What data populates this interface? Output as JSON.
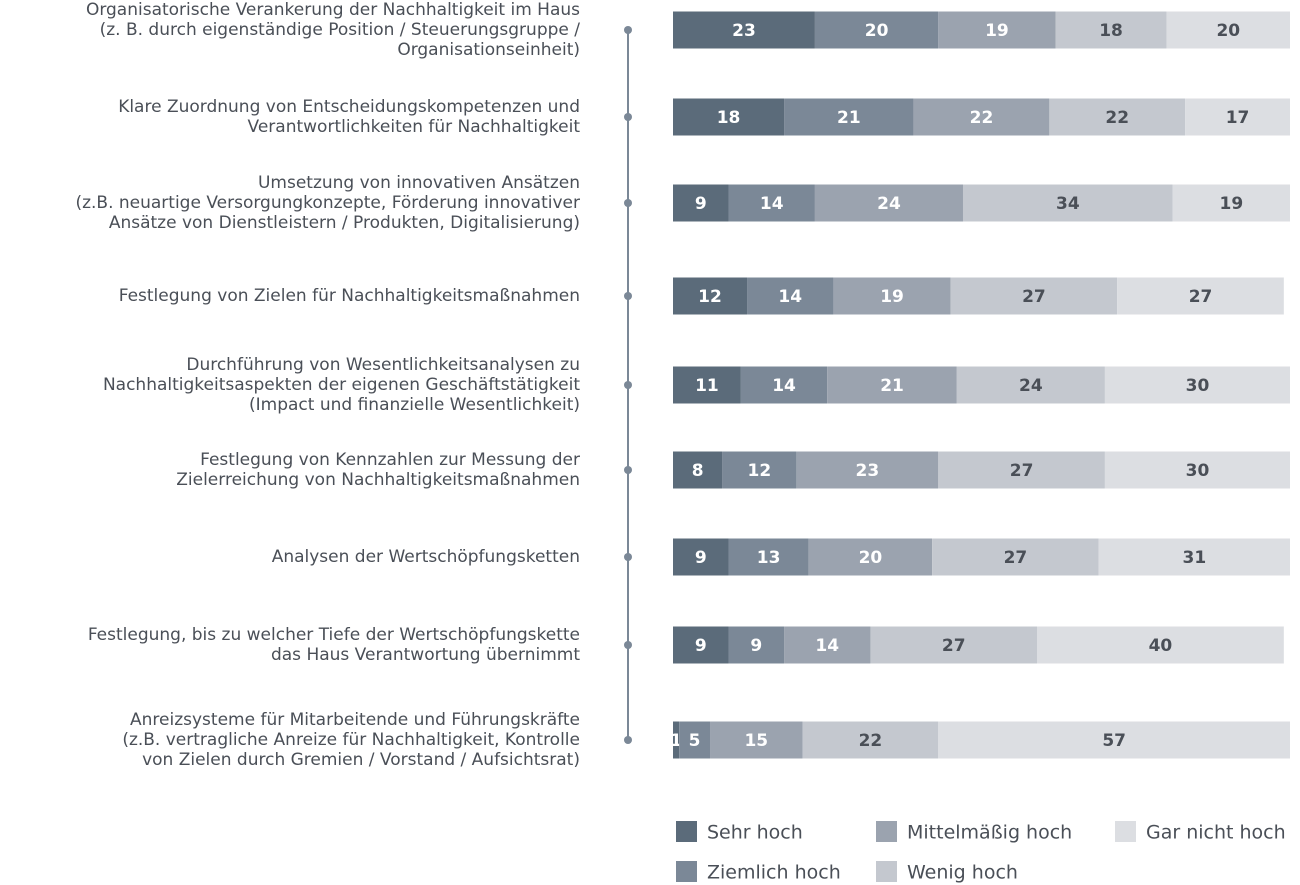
{
  "chart_data": {
    "type": "stacked-bar-horizontal",
    "categories": [
      [
        "Organisatorische Verankerung der Nachhaltigkeit im Haus",
        "(z. B. durch eigenständige Position / Steuerungsgruppe /",
        "Organisationseinheit)"
      ],
      [
        "Klare Zuordnung von Entscheidungskompetenzen und",
        "Verantwortlichkeiten für Nachhaltigkeit"
      ],
      [
        "Umsetzung von innovativen Ansätzen",
        "(z.B. neuartige Versorgungkonzepte, Förderung innovativer",
        "Ansätze von Dienstleistern / Produkten, Digitalisierung)"
      ],
      [
        "Festlegung von Zielen für Nachhaltigkeitsmaßnahmen"
      ],
      [
        "Durchführung von Wesentlichkeitsanalysen zu",
        "Nachhaltigkeitsaspekten der eigenen Geschäftstätigkeit",
        "(Impact und finanzielle Wesentlichkeit)"
      ],
      [
        "Festlegung von Kennzahlen zur Messung der",
        "Zielerreichung von Nachhaltigkeitsmaßnahmen"
      ],
      [
        "Analysen der Wertschöpfungsketten"
      ],
      [
        "Festlegung, bis zu welcher Tiefe der Wertschöpfungskette",
        "das Haus Verantwortung übernimmt"
      ],
      [
        "Anreizsysteme für Mitarbeitende und Führungskräfte",
        "(z.B. vertragliche Anreize für Nachhaltigkeit, Kontrolle",
        "von Zielen durch Gremien / Vorstand / Aufsichtsrat)"
      ]
    ],
    "series": [
      {
        "name": "Sehr hoch",
        "color": "#5b6b7a",
        "label_color": "#ffffff",
        "values": [
          23,
          18,
          9,
          12,
          11,
          8,
          9,
          9,
          1
        ]
      },
      {
        "name": "Ziemlich hoch",
        "color": "#7b8897",
        "label_color": "#ffffff",
        "values": [
          20,
          21,
          14,
          14,
          14,
          12,
          13,
          9,
          5
        ]
      },
      {
        "name": "Mittelmäßig hoch",
        "color": "#9ba3af",
        "label_color": "#ffffff",
        "values": [
          19,
          22,
          24,
          19,
          21,
          23,
          20,
          14,
          15
        ]
      },
      {
        "name": "Wenig hoch",
        "color": "#c4c8cf",
        "label_color": "#4a4f57",
        "values": [
          18,
          22,
          34,
          27,
          24,
          27,
          27,
          27,
          22
        ]
      },
      {
        "name": "Gar nicht hoch",
        "color": "#dcdee2",
        "label_color": "#4a4f57",
        "values": [
          20,
          17,
          19,
          27,
          30,
          30,
          31,
          40,
          57
        ]
      }
    ],
    "xlim": [
      0,
      100
    ]
  }
}
